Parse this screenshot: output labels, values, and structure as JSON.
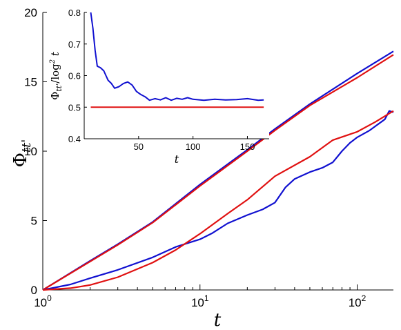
{
  "chart_data": [
    {
      "type": "line",
      "xscale": "log",
      "xlim": [
        1,
        170
      ],
      "ylim": [
        0,
        20
      ],
      "xlabel": "t",
      "ylabel": "Φtt'",
      "xticks": [
        1,
        10,
        100
      ],
      "xtick_labels": [
        {
          "base": "10",
          "exp": "0"
        },
        {
          "base": "10",
          "exp": "1"
        },
        {
          "base": "10",
          "exp": "2"
        }
      ],
      "yticks": [
        0,
        5,
        10,
        15,
        20
      ],
      "series": [
        {
          "color": "#1010d0",
          "points": [
            [
              1,
              0
            ],
            [
              2,
              2.1
            ],
            [
              3,
              3.3
            ],
            [
              5,
              4.9
            ],
            [
              10,
              7.6
            ],
            [
              20,
              10.1
            ],
            [
              30,
              11.6
            ],
            [
              50,
              13.4
            ],
            [
              100,
              15.6
            ],
            [
              170,
              17.2
            ]
          ]
        },
        {
          "color": "#e01010",
          "points": [
            [
              1,
              0
            ],
            [
              2,
              2.05
            ],
            [
              3,
              3.25
            ],
            [
              5,
              4.85
            ],
            [
              10,
              7.5
            ],
            [
              20,
              10.0
            ],
            [
              30,
              11.5
            ],
            [
              50,
              13.3
            ],
            [
              100,
              15.3
            ],
            [
              170,
              16.95
            ]
          ]
        },
        {
          "color": "#1010d0",
          "points": [
            [
              1,
              0
            ],
            [
              1.5,
              0.4
            ],
            [
              2,
              0.85
            ],
            [
              3,
              1.45
            ],
            [
              5,
              2.35
            ],
            [
              7,
              3.1
            ],
            [
              10,
              3.65
            ],
            [
              12,
              4.1
            ],
            [
              15,
              4.8
            ],
            [
              20,
              5.4
            ],
            [
              25,
              5.8
            ],
            [
              30,
              6.3
            ],
            [
              35,
              7.4
            ],
            [
              40,
              8.0
            ],
            [
              50,
              8.5
            ],
            [
              60,
              8.8
            ],
            [
              70,
              9.2
            ],
            [
              80,
              10.0
            ],
            [
              90,
              10.6
            ],
            [
              100,
              11.0
            ],
            [
              120,
              11.5
            ],
            [
              150,
              12.3
            ],
            [
              160,
              12.9
            ],
            [
              170,
              12.8
            ]
          ]
        },
        {
          "color": "#e01010",
          "points": [
            [
              1,
              0
            ],
            [
              1.5,
              0.13
            ],
            [
              2,
              0.36
            ],
            [
              3,
              0.92
            ],
            [
              5,
              1.97
            ],
            [
              7,
              2.88
            ],
            [
              10,
              4.05
            ],
            [
              15,
              5.5
            ],
            [
              20,
              6.5
            ],
            [
              30,
              8.2
            ],
            [
              50,
              9.6
            ],
            [
              70,
              10.8
            ],
            [
              100,
              11.4
            ],
            [
              130,
              12.1
            ],
            [
              170,
              12.9
            ]
          ]
        }
      ]
    },
    {
      "type": "line",
      "xlim": [
        0,
        170
      ],
      "ylim": [
        0.4,
        0.8
      ],
      "xlabel": "t",
      "ylabel": "Φtt'/log²t",
      "xticks": [
        50,
        100,
        150
      ],
      "yticks": [
        0.4,
        0.5,
        0.6,
        0.7,
        0.8
      ],
      "series": [
        {
          "color": "#1010d0",
          "points": [
            [
              6,
              0.8
            ],
            [
              8,
              0.75
            ],
            [
              10,
              0.68
            ],
            [
              12,
              0.63
            ],
            [
              15,
              0.625
            ],
            [
              18,
              0.615
            ],
            [
              20,
              0.6
            ],
            [
              22,
              0.585
            ],
            [
              25,
              0.575
            ],
            [
              28,
              0.56
            ],
            [
              32,
              0.565
            ],
            [
              36,
              0.575
            ],
            [
              40,
              0.58
            ],
            [
              44,
              0.57
            ],
            [
              48,
              0.55
            ],
            [
              52,
              0.54
            ],
            [
              56,
              0.533
            ],
            [
              60,
              0.522
            ],
            [
              65,
              0.527
            ],
            [
              70,
              0.523
            ],
            [
              75,
              0.53
            ],
            [
              80,
              0.522
            ],
            [
              85,
              0.528
            ],
            [
              90,
              0.525
            ],
            [
              95,
              0.53
            ],
            [
              100,
              0.525
            ],
            [
              110,
              0.522
            ],
            [
              120,
              0.525
            ],
            [
              130,
              0.523
            ],
            [
              140,
              0.524
            ],
            [
              150,
              0.527
            ],
            [
              160,
              0.522
            ],
            [
              165,
              0.523
            ]
          ]
        },
        {
          "color": "#e01010",
          "points": [
            [
              6,
              0.5
            ],
            [
              165,
              0.5
            ]
          ]
        }
      ]
    }
  ]
}
